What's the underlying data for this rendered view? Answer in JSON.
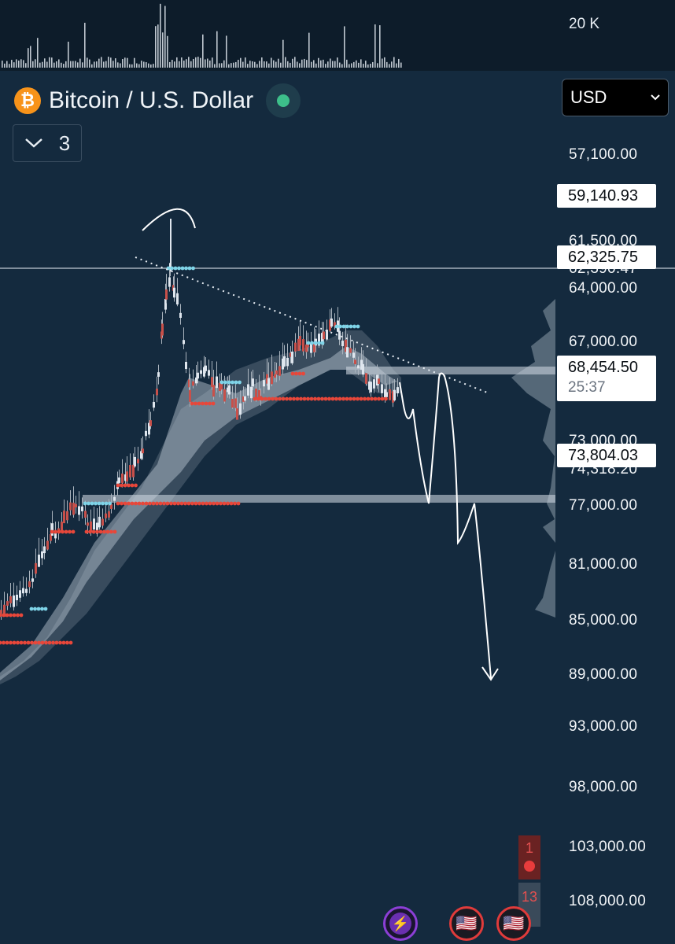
{
  "header": {
    "volume_scale_label": "20 K",
    "symbol_title": "Bitcoin / U.S. Dollar",
    "btc_icon_glyph": "₿",
    "indicator_count": "3",
    "currency": "USD"
  },
  "price_axis": {
    "ticks": [
      "57,100.00",
      "61,500.00",
      "64,000.00",
      "67,000.00",
      "73,000.00",
      "74,318.20",
      "77,000.00",
      "81,000.00",
      "85,000.00",
      "89,000.00",
      "93,000.00",
      "98,000.00",
      "103,000.00",
      "108,000.00"
    ],
    "hidden_partial_label": "62,390.47"
  },
  "price_badges": {
    "high": "59,140.93",
    "level": "62,325.75",
    "current": "68,454.50",
    "countdown": "25:37",
    "low": "73,804.03"
  },
  "side_badges": {
    "alerts_count": "1",
    "events_count": "13"
  },
  "bottom_buttons": {
    "bolt_glyph": "⚡",
    "flag_glyph": "🇺🇸"
  },
  "colors": {
    "background": "#142a3e",
    "bullish_dots": "#7fd4e8",
    "bearish_dots": "#e8473a",
    "candle_up": "#dfe6ee",
    "candle_down": "#c8504a",
    "status_online": "#3dbf8a",
    "bitcoin": "#f7931a"
  }
}
